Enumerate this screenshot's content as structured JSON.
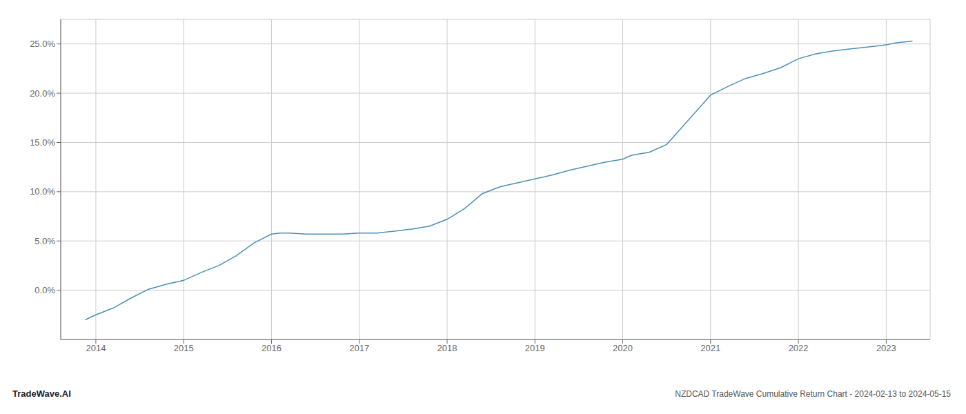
{
  "chart_data": {
    "type": "line",
    "title": "NZDCAD TradeWave Cumulative Return Chart - 2024-02-13 to 2024-05-15",
    "annotations": [
      "TradeWave.AI"
    ],
    "x": [
      2013.88,
      2014.0,
      2014.2,
      2014.4,
      2014.6,
      2014.8,
      2015.0,
      2015.2,
      2015.4,
      2015.6,
      2015.8,
      2016.0,
      2016.1,
      2016.2,
      2016.4,
      2016.6,
      2016.8,
      2017.0,
      2017.2,
      2017.4,
      2017.6,
      2017.8,
      2018.0,
      2018.2,
      2018.4,
      2018.6,
      2018.8,
      2019.0,
      2019.2,
      2019.4,
      2019.6,
      2019.8,
      2020.0,
      2020.1,
      2020.3,
      2020.5,
      2020.7,
      2020.9,
      2021.0,
      2021.2,
      2021.4,
      2021.6,
      2021.8,
      2022.0,
      2022.2,
      2022.4,
      2022.6,
      2022.8,
      2023.0,
      2023.1,
      2023.3
    ],
    "values": [
      -0.03,
      -0.025,
      -0.018,
      -0.008,
      0.001,
      0.006,
      0.01,
      0.018,
      0.025,
      0.035,
      0.048,
      0.057,
      0.058,
      0.058,
      0.057,
      0.057,
      0.057,
      0.058,
      0.058,
      0.06,
      0.062,
      0.065,
      0.072,
      0.083,
      0.098,
      0.105,
      0.109,
      0.113,
      0.117,
      0.122,
      0.126,
      0.13,
      0.133,
      0.137,
      0.14,
      0.148,
      0.168,
      0.188,
      0.198,
      0.207,
      0.215,
      0.22,
      0.226,
      0.235,
      0.24,
      0.243,
      0.245,
      0.247,
      0.249,
      0.251,
      0.253
    ],
    "color": "#4a90b8",
    "xlim": [
      2013.6,
      2023.5
    ],
    "ylim": [
      -0.05,
      0.275
    ],
    "xticks": [
      2014,
      2015,
      2016,
      2017,
      2018,
      2019,
      2020,
      2021,
      2022,
      2023
    ],
    "yticks": [
      {
        "value": 0.0,
        "label": "0.0%"
      },
      {
        "value": 0.05,
        "label": "5.0%"
      },
      {
        "value": 0.1,
        "label": "10.0%"
      },
      {
        "value": 0.15,
        "label": "15.0%"
      },
      {
        "value": 0.2,
        "label": "20.0%"
      },
      {
        "value": 0.25,
        "label": "25.0%"
      }
    ],
    "grid": true
  }
}
